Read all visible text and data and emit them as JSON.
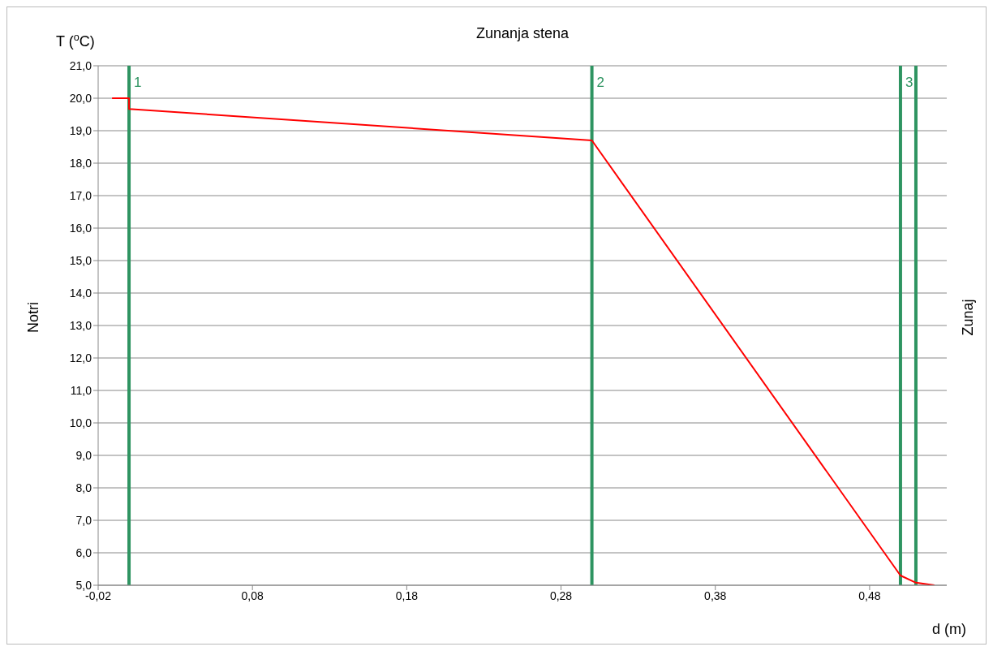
{
  "chart_data": {
    "type": "line",
    "title": "Zunanja stena",
    "ylabel": "T ($^{o}$C)",
    "xlabel": "d (m)",
    "series": [
      {
        "color": "#ff0000",
        "x": [
          -0.011,
          0.0,
          0.0,
          0.3,
          0.5,
          0.51,
          0.522
        ],
        "values": [
          20.0,
          20.0,
          19.67,
          18.7,
          5.3,
          5.08,
          5.0
        ]
      }
    ],
    "xlim": [
      -0.02,
      0.53
    ],
    "xticks": [
      {
        "value": -0.02,
        "label": "-0,02"
      },
      {
        "value": 0.08,
        "label": "0,08"
      },
      {
        "value": 0.18,
        "label": "0,18"
      },
      {
        "value": 0.28,
        "label": "0,28"
      },
      {
        "value": 0.38,
        "label": "0,38"
      },
      {
        "value": 0.48,
        "label": "0,48"
      }
    ],
    "ylim": [
      5,
      21
    ],
    "yticks": [
      {
        "value": 5,
        "label": "5,0"
      },
      {
        "value": 6,
        "label": "6,0"
      },
      {
        "value": 7,
        "label": "7,0"
      },
      {
        "value": 8,
        "label": "8,0"
      },
      {
        "value": 9,
        "label": "9,0"
      },
      {
        "value": 10,
        "label": "10,0"
      },
      {
        "value": 11,
        "label": "11,0"
      },
      {
        "value": 12,
        "label": "12,0"
      },
      {
        "value": 13,
        "label": "13,0"
      },
      {
        "value": 14,
        "label": "14,0"
      },
      {
        "value": 15,
        "label": "15,0"
      },
      {
        "value": 16,
        "label": "16,0"
      },
      {
        "value": 17,
        "label": "17,0"
      },
      {
        "value": 18,
        "label": "18,0"
      },
      {
        "value": 19,
        "label": "19,0"
      },
      {
        "value": 20,
        "label": "20,0"
      },
      {
        "value": 21,
        "label": "21,0"
      }
    ],
    "grid": "y",
    "ref_lines": [
      {
        "axis": "x",
        "value": 0.0,
        "color": "#2e9461"
      },
      {
        "axis": "x",
        "value": 0.3,
        "color": "#2e9461"
      },
      {
        "axis": "x",
        "value": 0.5,
        "color": "#2e9461"
      },
      {
        "axis": "x",
        "value": 0.51,
        "color": "#2e9461"
      }
    ],
    "annotations": [
      "Notri",
      "Zunaj",
      {
        "text": "1",
        "x": 0.0,
        "y": 20.5
      },
      {
        "text": "2",
        "x": 0.3,
        "y": 20.5
      },
      {
        "text": "3",
        "x": 0.5,
        "y": 20.5
      }
    ],
    "marker": "none",
    "line_style": "solid"
  }
}
